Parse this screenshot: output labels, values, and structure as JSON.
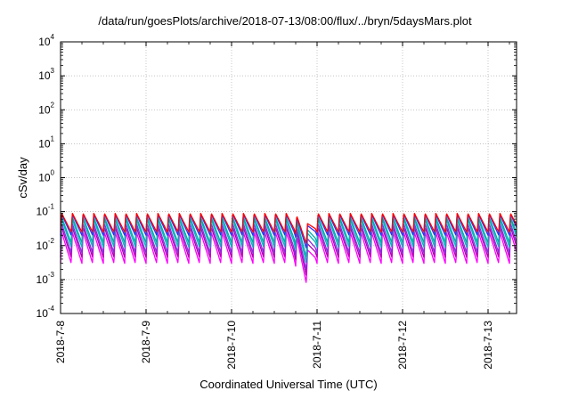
{
  "chart_data": {
    "type": "line",
    "title": "/data/run/goesPlots/archive/2018-07-13/08:00/flux/../bryn/5daysMars.plot",
    "xlabel": "Coordinated Universal Time (UTC)",
    "ylabel": "cSv/day",
    "yscale": "log",
    "ylim": [
      0.0001,
      10000
    ],
    "y_ticks": [
      {
        "base": "10",
        "exp": "-4",
        "value": 0.0001
      },
      {
        "base": "10",
        "exp": "-3",
        "value": 0.001
      },
      {
        "base": "10",
        "exp": "-2",
        "value": 0.01
      },
      {
        "base": "10",
        "exp": "-1",
        "value": 0.1
      },
      {
        "base": "10",
        "exp": "0",
        "value": 1
      },
      {
        "base": "10",
        "exp": "1",
        "value": 10
      },
      {
        "base": "10",
        "exp": "2",
        "value": 100
      },
      {
        "base": "10",
        "exp": "3",
        "value": 1000
      },
      {
        "base": "10",
        "exp": "4",
        "value": 10000
      }
    ],
    "xlim": [
      "2018-07-08 00:00",
      "2018-07-13 08:00"
    ],
    "x_ticks": [
      "2018-7-8",
      "2018-7-9",
      "2018-7-10",
      "2018-7-11",
      "2018-7-12",
      "2018-7-13"
    ],
    "grid": true,
    "orbit_period_hours": 3,
    "series_colors": [
      "#ff0000",
      "#2e2eff",
      "#00aaaa",
      "#00b8b8",
      "#8a2be2",
      "#b000b0",
      "#ff00ff"
    ],
    "series": [
      {
        "peak": 0.09,
        "trough": 0.025
      },
      {
        "peak": 0.085,
        "trough": 0.02
      },
      {
        "peak": 0.07,
        "trough": 0.012
      },
      {
        "peak": 0.06,
        "trough": 0.009
      },
      {
        "peak": 0.045,
        "trough": 0.006
      },
      {
        "peak": 0.035,
        "trough": 0.0045
      },
      {
        "peak": 0.025,
        "trough": 0.003
      }
    ],
    "dip": {
      "time": "2018-07-10 21:00",
      "factor": 0.45
    }
  }
}
